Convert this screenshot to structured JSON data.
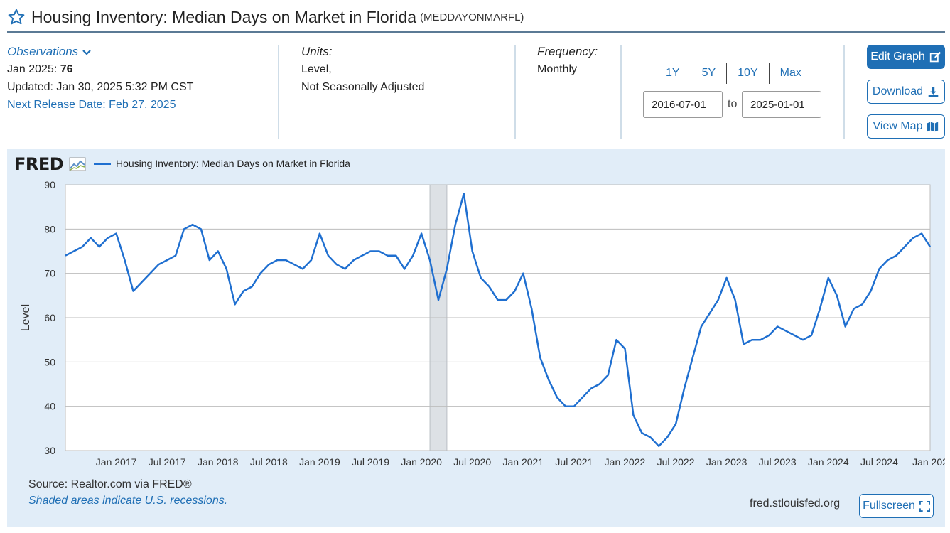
{
  "header": {
    "title": "Housing Inventory: Median Days on Market in Florida",
    "series_id": "(MEDDAYONMARFL)"
  },
  "observations": {
    "label": "Observations",
    "latest_date": "Jan 2025:",
    "latest_value": "76",
    "updated": "Updated: Jan 30, 2025 5:32 PM CST",
    "next_release": "Next Release Date: Feb 27, 2025"
  },
  "units": {
    "label": "Units:",
    "line1": "Level,",
    "line2": "Not Seasonally Adjusted"
  },
  "frequency": {
    "label": "Frequency:",
    "value": "Monthly"
  },
  "range": {
    "buttons": [
      "1Y",
      "5Y",
      "10Y",
      "Max"
    ],
    "start": "2016-07-01",
    "to": "to",
    "end": "2025-01-01"
  },
  "actions": {
    "edit_graph": "Edit Graph",
    "download": "Download",
    "view_map": "View Map"
  },
  "graph": {
    "logo": "FRED",
    "source": "Source: Realtor.com via FRED®",
    "shade_note": "Shaded areas indicate U.S. recessions.",
    "site": "fred.stlouisfed.org",
    "fullscreen": "Fullscreen"
  },
  "colors": {
    "accent": "#1f6fb5",
    "series": "#1f6fd0",
    "panel": "#e1edf8",
    "recession": "#dde1e5"
  },
  "chart_data": {
    "type": "line",
    "ylabel": "Level",
    "ylim": [
      30,
      90
    ],
    "yticks": [
      30,
      40,
      50,
      60,
      70,
      80,
      90
    ],
    "xlim": [
      "2016-07-01",
      "2025-01-01"
    ],
    "xticks": [
      {
        "label": "Jan 2017",
        "date": "2017-01-01"
      },
      {
        "label": "Jul 2017",
        "date": "2017-07-01"
      },
      {
        "label": "Jan 2018",
        "date": "2018-01-01"
      },
      {
        "label": "Jul 2018",
        "date": "2018-07-01"
      },
      {
        "label": "Jan 2019",
        "date": "2019-01-01"
      },
      {
        "label": "Jul 2019",
        "date": "2019-07-01"
      },
      {
        "label": "Jan 2020",
        "date": "2020-01-01"
      },
      {
        "label": "Jul 2020",
        "date": "2020-07-01"
      },
      {
        "label": "Jan 2021",
        "date": "2021-01-01"
      },
      {
        "label": "Jul 2021",
        "date": "2021-07-01"
      },
      {
        "label": "Jan 2022",
        "date": "2022-01-01"
      },
      {
        "label": "Jul 2022",
        "date": "2022-07-01"
      },
      {
        "label": "Jan 2023",
        "date": "2023-01-01"
      },
      {
        "label": "Jul 2023",
        "date": "2023-07-01"
      },
      {
        "label": "Jan 2024",
        "date": "2024-01-01"
      },
      {
        "label": "Jul 2024",
        "date": "2024-07-01"
      },
      {
        "label": "Jan 202",
        "date": "2025-01-01"
      }
    ],
    "recessions": [
      {
        "start": "2020-02-01",
        "end": "2020-04-01"
      }
    ],
    "grid": true,
    "legend": "top-left",
    "series": [
      {
        "name": "Housing Inventory: Median Days on Market in Florida",
        "start": "2016-07-01",
        "frequency": "monthly",
        "values": [
          74,
          75,
          76,
          78,
          76,
          78,
          79,
          73,
          66,
          68,
          70,
          72,
          73,
          74,
          80,
          81,
          80,
          73,
          75,
          71,
          63,
          66,
          67,
          70,
          72,
          73,
          73,
          72,
          71,
          73,
          79,
          74,
          72,
          71,
          73,
          74,
          75,
          75,
          74,
          74,
          71,
          74,
          79,
          73,
          64,
          71,
          81,
          88,
          75,
          69,
          67,
          64,
          64,
          66,
          70,
          62,
          51,
          46,
          42,
          40,
          40,
          42,
          44,
          45,
          47,
          55,
          53,
          38,
          34,
          33,
          31,
          33,
          36,
          44,
          51,
          58,
          61,
          64,
          69,
          64,
          54,
          55,
          55,
          56,
          58,
          57,
          56,
          55,
          56,
          62,
          69,
          65,
          58,
          62,
          63,
          66,
          71,
          73,
          74,
          76,
          78,
          79,
          76
        ]
      }
    ]
  }
}
